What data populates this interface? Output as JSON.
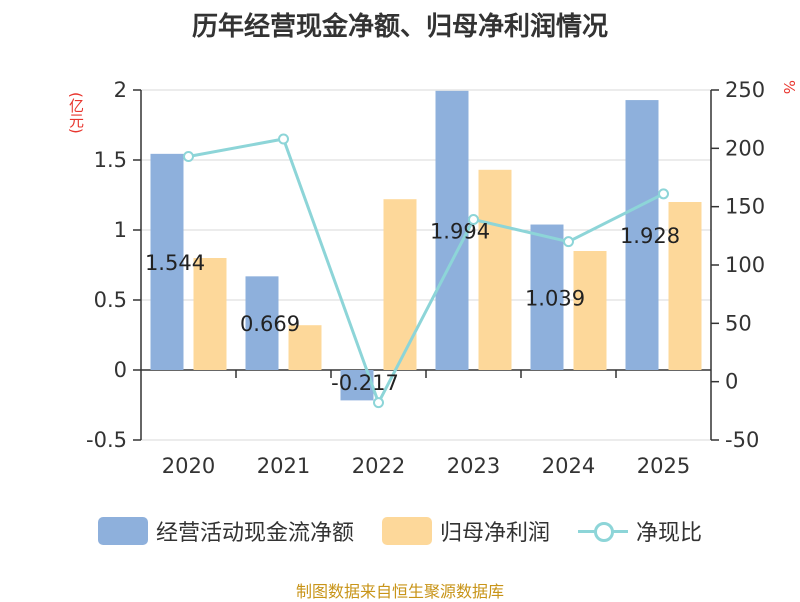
{
  "title": "历年经营现金净额、归母净利润情况",
  "left_unit": "(亿元)",
  "right_unit": "%",
  "source": "制图数据来自恒生聚源数据库",
  "colors": {
    "cash_flow": "#8eb0dc",
    "net_profit": "#fdd89a",
    "ratio": "#8dd5d8",
    "unit_text": "#e8352e",
    "source_text": "#c89418"
  },
  "chart_data": {
    "type": "bar",
    "categories": [
      "2020",
      "2021",
      "2022",
      "2023",
      "2024",
      "2025"
    ],
    "series": [
      {
        "name": "经营活动现金流净额",
        "type": "bar",
        "axis": "left",
        "values": [
          1.544,
          0.669,
          -0.217,
          1.994,
          1.039,
          1.928
        ],
        "labels": [
          "1.544",
          "0.669",
          "-0.217",
          "1.994",
          "1.039",
          "1.928"
        ]
      },
      {
        "name": "归母净利润",
        "type": "bar",
        "axis": "left",
        "values": [
          0.8,
          0.32,
          1.22,
          1.43,
          0.85,
          1.2
        ]
      },
      {
        "name": "净现比",
        "type": "line",
        "axis": "right",
        "values": [
          193,
          208,
          -18,
          139,
          120,
          161
        ]
      }
    ],
    "y_left": {
      "min": -0.5,
      "max": 2,
      "ticks": [
        "-0.5",
        "0",
        "0.5",
        "1",
        "1.5",
        "2"
      ]
    },
    "y_right": {
      "min": -50,
      "max": 250,
      "ticks": [
        "-50",
        "0",
        "50",
        "100",
        "150",
        "200",
        "250"
      ]
    },
    "grid": true,
    "legend_position": "bottom"
  }
}
